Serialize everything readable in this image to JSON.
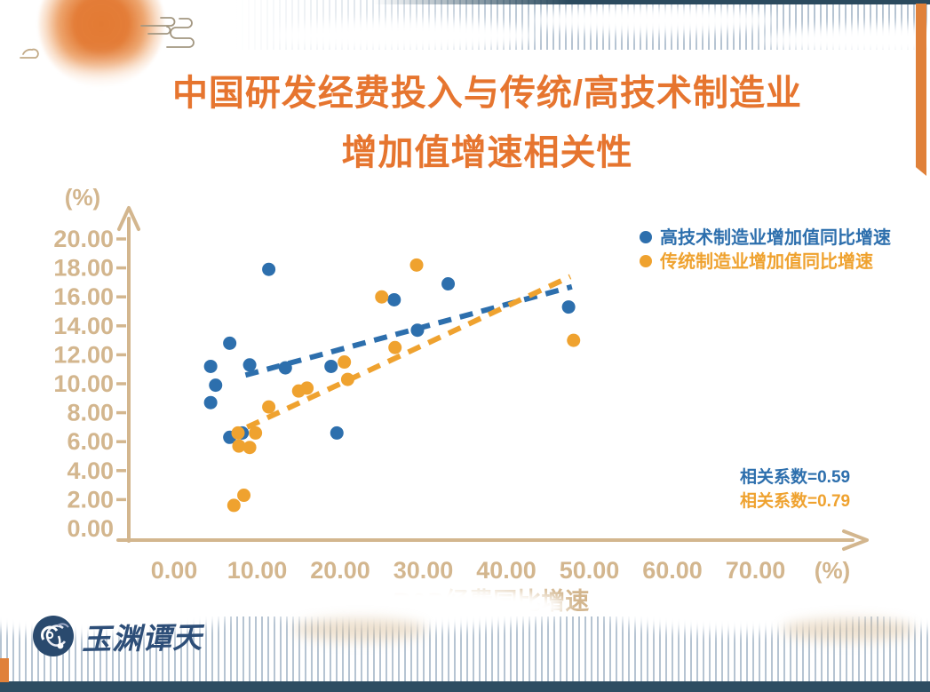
{
  "slide": {
    "title_line1": "中国研发经费投入与传统/高技术制造业",
    "title_line2": "增加值增速相关性",
    "title_color": "#e6752f",
    "logo_text": "玉渊谭天"
  },
  "chart_data": {
    "type": "scatter",
    "title": "中国研发经费投入与传统/高技术制造业增加值增速相关性",
    "xlabel": "R&D经费同比增速",
    "ylabel": "",
    "x_unit_label": "(%)",
    "y_unit_label": "(%)",
    "xlim": [
      0,
      83
    ],
    "ylim": [
      0,
      22
    ],
    "grid": false,
    "legend_position": "top-right",
    "axis_color": "#d3b68e",
    "x_ticks": [
      0,
      10,
      20,
      30,
      40,
      50,
      60,
      70
    ],
    "x_tick_labels": [
      "0.00",
      "10.00",
      "20.00",
      "30.00",
      "40.00",
      "50.00",
      "60.00",
      "70.00"
    ],
    "y_ticks": [
      0,
      2,
      4,
      6,
      8,
      10,
      12,
      14,
      16,
      18,
      20
    ],
    "y_tick_labels": [
      "0.00",
      "2.00",
      "4.00",
      "6.00",
      "8.00",
      "10.00",
      "12.00",
      "14.00",
      "16.00",
      "18.00",
      "20.00"
    ],
    "series": [
      {
        "name": "高技术制造业增加值同比增速",
        "color": "#2d6fad",
        "correlation": 0.59,
        "correlation_label": "相关系数=0.59",
        "points": [
          [
            4.4,
            11.2
          ],
          [
            4.4,
            8.7
          ],
          [
            5.0,
            9.9
          ],
          [
            6.7,
            12.8
          ],
          [
            6.7,
            6.3
          ],
          [
            8.2,
            6.6
          ],
          [
            9.1,
            11.3
          ],
          [
            11.4,
            17.9
          ],
          [
            13.4,
            11.1
          ],
          [
            18.9,
            11.2
          ],
          [
            19.6,
            6.6
          ],
          [
            26.5,
            15.8
          ],
          [
            29.3,
            13.7
          ],
          [
            33.0,
            16.9
          ],
          [
            47.5,
            15.3
          ]
        ],
        "trendline": {
          "x1": 8.6,
          "y1": 10.6,
          "x2": 47.9,
          "y2": 16.7
        }
      },
      {
        "name": "传统制造业增加值同比增速",
        "color": "#efa22f",
        "correlation": 0.79,
        "correlation_label": "相关系数=0.79",
        "points": [
          [
            7.2,
            1.6
          ],
          [
            8.4,
            2.3
          ],
          [
            7.7,
            6.6
          ],
          [
            7.8,
            5.7
          ],
          [
            9.1,
            5.6
          ],
          [
            9.8,
            6.6
          ],
          [
            11.4,
            8.4
          ],
          [
            15.0,
            9.5
          ],
          [
            16.0,
            9.7
          ],
          [
            20.5,
            11.5
          ],
          [
            20.9,
            10.3
          ],
          [
            25.0,
            16.0
          ],
          [
            26.6,
            12.5
          ],
          [
            29.2,
            18.2
          ],
          [
            48.1,
            13.0
          ]
        ],
        "trendline": {
          "x1": 8.8,
          "y1": 7.0,
          "x2": 47.7,
          "y2": 17.4
        }
      }
    ]
  }
}
